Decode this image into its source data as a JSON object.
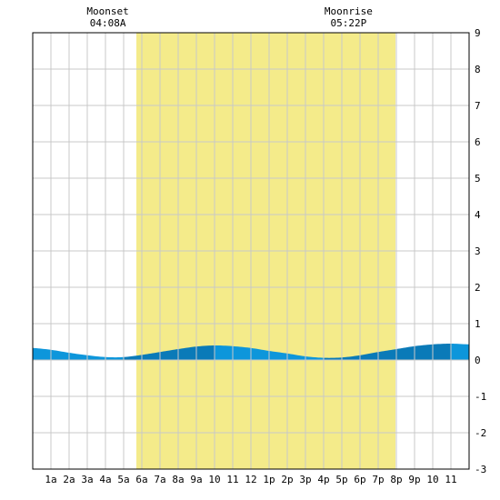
{
  "chart_data": {
    "type": "area",
    "moon_events": [
      {
        "label": "Moonset",
        "time": "04:08A",
        "hour": 4.13
      },
      {
        "label": "Moonrise",
        "time": "05:22P",
        "hour": 17.37
      }
    ],
    "daylight": {
      "start_hour": 5.7,
      "end_hour": 19.95
    },
    "x_tick_labels": [
      "1a",
      "2a",
      "3a",
      "4a",
      "5a",
      "6a",
      "7a",
      "8a",
      "9a",
      "10",
      "11",
      "12",
      "1p",
      "2p",
      "3p",
      "4p",
      "5p",
      "6p",
      "7p",
      "8p",
      "9p",
      "10",
      "11"
    ],
    "y_tick_labels": [
      "9",
      "8",
      "7",
      "6",
      "5",
      "4",
      "3",
      "2",
      "1",
      "0",
      "-1",
      "-2",
      "-3"
    ],
    "xlim": [
      0,
      24
    ],
    "ylim": [
      -3,
      9
    ],
    "grid": true,
    "series": [
      {
        "x": [
          0,
          1,
          2,
          3,
          4,
          5,
          6,
          7,
          8,
          9,
          10,
          11,
          12,
          13,
          14,
          15,
          16,
          17,
          18,
          19,
          20,
          21,
          22,
          23,
          24
        ],
        "values": [
          0.33,
          0.28,
          0.2,
          0.13,
          0.08,
          0.08,
          0.14,
          0.22,
          0.3,
          0.37,
          0.4,
          0.38,
          0.33,
          0.25,
          0.18,
          0.1,
          0.06,
          0.07,
          0.13,
          0.22,
          0.3,
          0.38,
          0.43,
          0.45,
          0.43
        ]
      }
    ],
    "colors": {
      "daylight": "#f4eb8a",
      "tide_light": "#0d96db",
      "tide_dark": "#0a7ab8",
      "grid": "#c8c8c8",
      "frame": "#000000"
    }
  }
}
